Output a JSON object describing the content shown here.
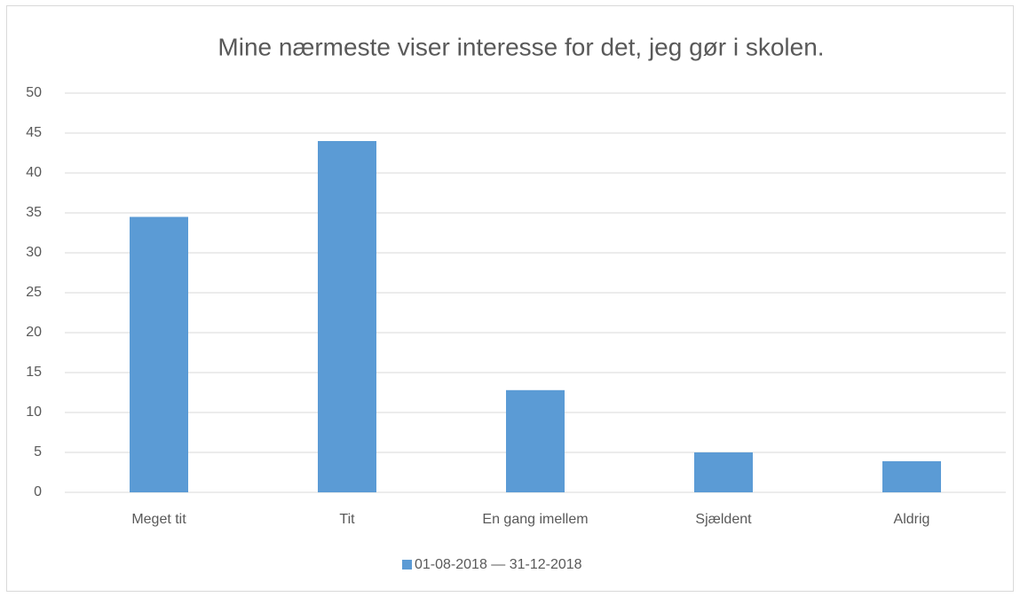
{
  "chart_data": {
    "type": "bar",
    "title": "Mine nærmeste viser interesse for det, jeg gør i skolen.",
    "categories": [
      "Meget tit",
      "Tit",
      "En gang imellem",
      "Sjældent",
      "Aldrig"
    ],
    "series": [
      {
        "name": "01-08-2018 — 31-12-2018",
        "color": "#5b9bd5",
        "values": [
          34.5,
          44,
          12.8,
          5,
          3.9
        ]
      }
    ],
    "ylim": [
      0,
      50
    ],
    "yticks": [
      0,
      5,
      10,
      15,
      20,
      25,
      30,
      35,
      40,
      45,
      50
    ],
    "grid": true,
    "legend": "bottom"
  }
}
